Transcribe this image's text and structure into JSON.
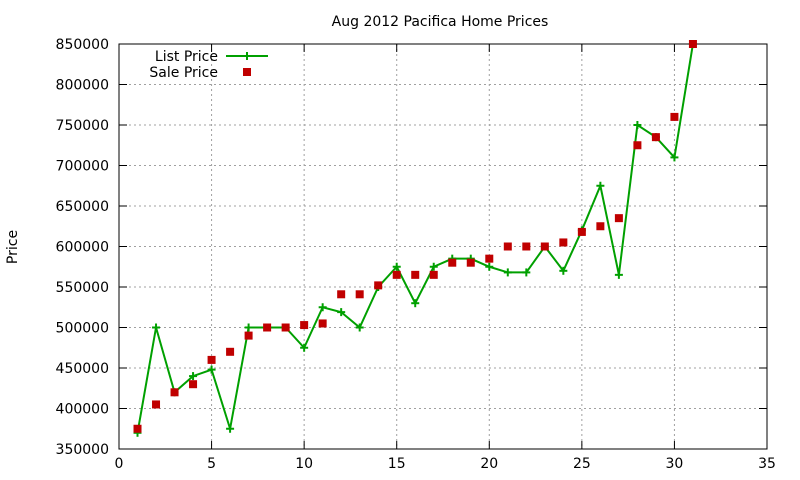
{
  "chart_data": {
    "type": "line",
    "title": "Aug 2012 Pacifica Home Prices",
    "xlabel": "",
    "ylabel": "Price",
    "xlim": [
      0,
      35
    ],
    "ylim": [
      350000,
      850000
    ],
    "xticks": [
      0,
      5,
      10,
      15,
      20,
      25,
      30,
      35
    ],
    "yticks": [
      350000,
      400000,
      450000,
      500000,
      550000,
      600000,
      650000,
      700000,
      750000,
      800000,
      850000
    ],
    "grid": true,
    "legend_position": "top-left",
    "series": [
      {
        "name": "List Price",
        "style": "line-with-plus-markers",
        "color": "#00a000",
        "points": [
          [
            1,
            370000
          ],
          [
            2,
            500000
          ],
          [
            3,
            420000
          ],
          [
            4,
            440000
          ],
          [
            5,
            448000
          ],
          [
            6,
            375000
          ],
          [
            7,
            500000
          ],
          [
            8,
            500000
          ],
          [
            9,
            500000
          ],
          [
            10,
            475000
          ],
          [
            11,
            525000
          ],
          [
            12,
            519000
          ],
          [
            13,
            500000
          ],
          [
            14,
            550000
          ],
          [
            15,
            575000
          ],
          [
            16,
            530000
          ],
          [
            17,
            575000
          ],
          [
            18,
            585000
          ],
          [
            19,
            585000
          ],
          [
            20,
            575000
          ],
          [
            21,
            568000
          ],
          [
            22,
            568000
          ],
          [
            23,
            600000
          ],
          [
            24,
            570000
          ],
          [
            25,
            620000
          ],
          [
            26,
            675000
          ],
          [
            27,
            565000
          ],
          [
            28,
            750000
          ],
          [
            29,
            735000
          ],
          [
            30,
            710000
          ],
          [
            31,
            850000
          ]
        ]
      },
      {
        "name": "Sale Price",
        "style": "square-markers",
        "color": "#c00000",
        "points": [
          [
            1,
            375000
          ],
          [
            2,
            405000
          ],
          [
            3,
            420000
          ],
          [
            4,
            430000
          ],
          [
            5,
            460000
          ],
          [
            6,
            470000
          ],
          [
            7,
            490000
          ],
          [
            8,
            500000
          ],
          [
            9,
            500000
          ],
          [
            10,
            503000
          ],
          [
            11,
            505000
          ],
          [
            12,
            541000
          ],
          [
            13,
            541000
          ],
          [
            14,
            552000
          ],
          [
            15,
            565000
          ],
          [
            16,
            565000
          ],
          [
            17,
            565000
          ],
          [
            18,
            580000
          ],
          [
            19,
            580000
          ],
          [
            20,
            585000
          ],
          [
            21,
            600000
          ],
          [
            22,
            600000
          ],
          [
            23,
            600000
          ],
          [
            24,
            605000
          ],
          [
            25,
            618000
          ],
          [
            26,
            625000
          ],
          [
            27,
            635000
          ],
          [
            28,
            725000
          ],
          [
            29,
            735000
          ],
          [
            30,
            760000
          ],
          [
            31,
            850000
          ]
        ]
      }
    ]
  }
}
